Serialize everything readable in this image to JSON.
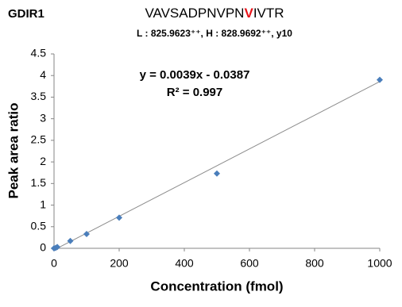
{
  "chart_data": {
    "type": "scatter",
    "panel_label": "GDIR1",
    "title": [
      {
        "text": "VAVSADPNVPN"
      },
      {
        "text": "V",
        "color": "#e8141a"
      },
      {
        "text": "IVTR"
      }
    ],
    "subtitle": "L : 825.9623⁺⁺, H : 828.9692⁺⁺, y10",
    "x_label": "Concentration (fmol)",
    "y_label": "Peak area ratio",
    "x": [
      0,
      5,
      10,
      50,
      100,
      200,
      500,
      1000
    ],
    "series": [
      {
        "color": "#4a7ebb",
        "values": [
          0,
          0.01,
          0.03,
          0.17,
          0.33,
          0.71,
          1.73,
          3.9
        ]
      }
    ],
    "trendline": {
      "slope": 0.0039,
      "intercept": -0.0387,
      "color": "#8c8c8c",
      "equation": "y = 0.0039x - 0.0387",
      "r2": "R² = 0.997"
    },
    "xlim": [
      0,
      1000
    ],
    "xticks": [
      0,
      200,
      400,
      600,
      800,
      1000
    ],
    "ylim": [
      0,
      4.5
    ],
    "yticks": [
      0,
      0.5,
      1,
      1.5,
      2,
      2.5,
      3,
      3.5,
      4,
      4.5
    ],
    "grid": false
  }
}
